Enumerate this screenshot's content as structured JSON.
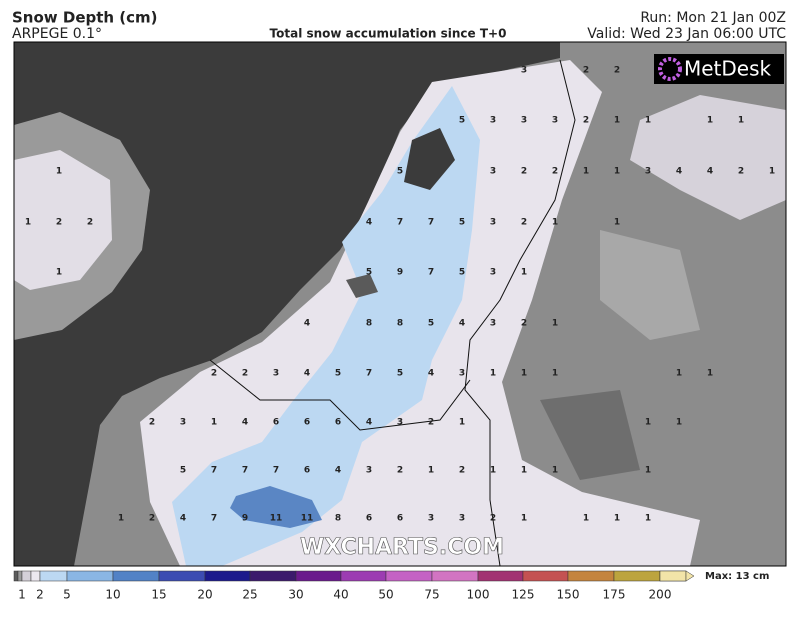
{
  "header": {
    "title": "Snow Depth (cm)",
    "model": "ARPEGE 0.1°",
    "subtitle": "Total snow accumulation since T+0",
    "run": "Run: Mon 21 Jan 00Z",
    "valid": "Valid: Wed 23 Jan 06:00 UTC"
  },
  "logo": "MetDesk",
  "watermark": "WXCHARTS.COM",
  "map_labels": [
    [
      null,
      null,
      null,
      null,
      null,
      null,
      null,
      null,
      null,
      null,
      null,
      null,
      null,
      null,
      null,
      null,
      3,
      null,
      2,
      2,
      null,
      null,
      null,
      null,
      null
    ],
    [
      null,
      null,
      null,
      null,
      null,
      null,
      null,
      null,
      null,
      null,
      null,
      null,
      null,
      null,
      5,
      3,
      3,
      3,
      2,
      1,
      1,
      null,
      1,
      1,
      null
    ],
    [
      null,
      1,
      null,
      null,
      null,
      null,
      null,
      null,
      null,
      null,
      null,
      null,
      5,
      null,
      null,
      3,
      2,
      2,
      1,
      1,
      3,
      4,
      4,
      2,
      1
    ],
    [
      1,
      2,
      2,
      null,
      null,
      null,
      null,
      null,
      null,
      null,
      null,
      4,
      7,
      7,
      5,
      3,
      2,
      1,
      null,
      1,
      null,
      null,
      null,
      null,
      null
    ],
    [
      null,
      1,
      null,
      null,
      null,
      null,
      null,
      null,
      null,
      null,
      null,
      5,
      9,
      7,
      5,
      3,
      1,
      null,
      null,
      null,
      null,
      null,
      null,
      null,
      null
    ],
    [
      null,
      null,
      null,
      null,
      null,
      null,
      null,
      null,
      null,
      4,
      null,
      8,
      8,
      5,
      4,
      3,
      2,
      1,
      null,
      null,
      null,
      null,
      null,
      null,
      null
    ],
    [
      null,
      null,
      null,
      null,
      null,
      null,
      2,
      2,
      3,
      4,
      5,
      7,
      5,
      4,
      3,
      1,
      1,
      1,
      null,
      null,
      null,
      1,
      1,
      null,
      null
    ],
    [
      null,
      null,
      null,
      null,
      2,
      3,
      1,
      4,
      6,
      6,
      6,
      4,
      3,
      2,
      1,
      null,
      null,
      null,
      null,
      null,
      1,
      1,
      null,
      null,
      null
    ],
    [
      null,
      null,
      null,
      null,
      null,
      5,
      7,
      7,
      7,
      6,
      4,
      3,
      2,
      1,
      2,
      1,
      1,
      1,
      null,
      null,
      1,
      null,
      null,
      null,
      null
    ],
    [
      null,
      null,
      null,
      1,
      2,
      4,
      7,
      9,
      11,
      11,
      8,
      6,
      6,
      3,
      3,
      2,
      1,
      null,
      1,
      1,
      1,
      null,
      null,
      null,
      null
    ]
  ],
  "legend": {
    "ticks": [
      1,
      2,
      5,
      10,
      15,
      20,
      25,
      30,
      40,
      50,
      75,
      100,
      125,
      150,
      175,
      200
    ],
    "colors": [
      "#5c5c5c",
      "#9a9a9a",
      "#d4d0d8",
      "#ece8f0",
      "#bcd8f2",
      "#8ab6e4",
      "#5282c6",
      "#3c4cb2",
      "#1c1a8c",
      "#3c1a6c",
      "#6a1a8c",
      "#9c3cb2",
      "#c462c4",
      "#d274c2",
      "#a23272",
      "#c45252",
      "#c4843e",
      "#bca43e",
      "#d4c472",
      "#f2e4a8"
    ],
    "max": "Max: 13 cm"
  }
}
